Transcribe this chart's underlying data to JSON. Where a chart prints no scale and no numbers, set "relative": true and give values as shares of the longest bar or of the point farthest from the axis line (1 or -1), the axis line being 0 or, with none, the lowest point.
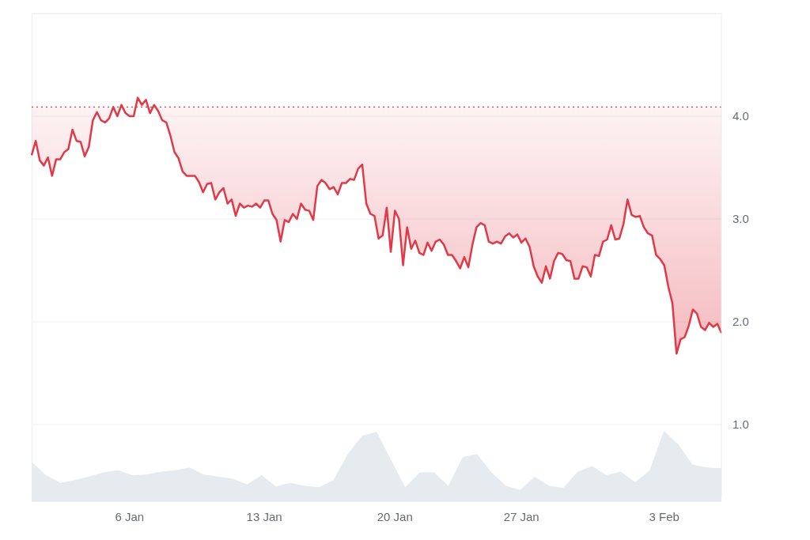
{
  "chart_data": [
    {
      "type": "line",
      "color": "#e03a48",
      "grid": "y",
      "ylim": [
        0.3,
        5.0
      ],
      "yticks": [
        {
          "value": 1,
          "label": "1.0"
        },
        {
          "value": 2,
          "label": "2.0"
        },
        {
          "value": 3,
          "label": "3.0"
        },
        {
          "value": 4,
          "label": "4.0"
        }
      ],
      "ref_lines": [
        {
          "axis": "y",
          "value": 4.09,
          "color": "#e03a48",
          "line_style": "dotted"
        }
      ],
      "categories": [
        null,
        null,
        null,
        null,
        null,
        null,
        null,
        null,
        null,
        null,
        null,
        null,
        null,
        null,
        null,
        null,
        null,
        null,
        null,
        null,
        null,
        null,
        null,
        null,
        "6 Jan",
        null,
        null,
        null,
        null,
        null,
        null,
        null,
        null,
        null,
        null,
        null,
        null,
        null,
        null,
        null,
        null,
        null,
        null,
        null,
        null,
        null,
        null,
        null,
        null,
        null,
        null,
        null,
        null,
        null,
        null,
        null,
        null,
        "13 Jan",
        null,
        null,
        null,
        null,
        null,
        null,
        null,
        null,
        null,
        null,
        null,
        null,
        null,
        null,
        null,
        null,
        null,
        null,
        null,
        null,
        null,
        null,
        null,
        null,
        null,
        null,
        null,
        null,
        null,
        null,
        null,
        "20 Jan",
        null,
        null,
        null,
        null,
        null,
        null,
        null,
        null,
        null,
        null,
        null,
        null,
        null,
        null,
        null,
        null,
        null,
        null,
        null,
        null,
        null,
        null,
        null,
        null,
        null,
        null,
        null,
        null,
        null,
        null,
        "27 Jan",
        null,
        null,
        null,
        null,
        null,
        null,
        null,
        null,
        null,
        null,
        null,
        null,
        null,
        null,
        null,
        null,
        null,
        null,
        null,
        null,
        null,
        null,
        null,
        null,
        null,
        null,
        null,
        null,
        null,
        null,
        null,
        null,
        null,
        null,
        "3 Feb",
        null,
        null,
        null,
        null,
        null,
        null,
        null,
        null,
        null,
        null,
        null,
        null,
        null,
        null
      ],
      "values": [
        3.62,
        3.76,
        3.57,
        3.52,
        3.6,
        3.42,
        3.58,
        3.58,
        3.65,
        3.68,
        3.87,
        3.76,
        3.75,
        3.61,
        3.7,
        3.96,
        4.04,
        3.96,
        3.94,
        3.98,
        4.09,
        4.0,
        4.11,
        4.03,
        4.0,
        4.0,
        4.18,
        4.11,
        4.16,
        4.03,
        4.11,
        4.05,
        3.96,
        3.94,
        3.81,
        3.65,
        3.59,
        3.46,
        3.42,
        3.42,
        3.42,
        3.36,
        3.26,
        3.34,
        3.35,
        3.19,
        3.26,
        3.3,
        3.15,
        3.19,
        3.03,
        3.15,
        3.11,
        3.13,
        3.12,
        3.15,
        3.11,
        3.18,
        3.18,
        3.05,
        2.99,
        2.78,
        2.99,
        2.97,
        3.05,
        3.0,
        3.15,
        3.09,
        3.08,
        2.99,
        3.32,
        3.38,
        3.35,
        3.29,
        3.31,
        3.24,
        3.35,
        3.35,
        3.39,
        3.38,
        3.49,
        3.53,
        3.15,
        3.05,
        3.03,
        2.81,
        2.84,
        3.11,
        2.68,
        3.08,
        3.0,
        2.55,
        2.92,
        2.71,
        2.79,
        2.67,
        2.65,
        2.77,
        2.69,
        2.78,
        2.8,
        2.75,
        2.65,
        2.65,
        2.59,
        2.52,
        2.63,
        2.53,
        2.75,
        2.92,
        2.96,
        2.94,
        2.78,
        2.76,
        2.78,
        2.76,
        2.83,
        2.86,
        2.82,
        2.85,
        2.77,
        2.81,
        2.73,
        2.54,
        2.44,
        2.38,
        2.54,
        2.42,
        2.59,
        2.67,
        2.66,
        2.6,
        2.59,
        2.42,
        2.42,
        2.54,
        2.53,
        2.44,
        2.65,
        2.64,
        2.78,
        2.8,
        2.94,
        2.8,
        2.81,
        2.95,
        3.19,
        3.04,
        3.02,
        3.03,
        2.92,
        2.86,
        2.84,
        2.65,
        2.61,
        2.55,
        2.34,
        2.18,
        1.69,
        1.83,
        1.85,
        1.96,
        2.12,
        2.08,
        1.95,
        1.92,
        1.99,
        1.95,
        1.98,
        1.89
      ]
    },
    {
      "type": "area",
      "color": "#e6ebef",
      "relative": true,
      "tick_labels": false,
      "categories": [
        null,
        null,
        null,
        null,
        null,
        null,
        null,
        null,
        null,
        null,
        null,
        null,
        null,
        null,
        null,
        null,
        null,
        null,
        null,
        null,
        null,
        null,
        null,
        null,
        null,
        null,
        null,
        null,
        null,
        null,
        null,
        null,
        null,
        null,
        null,
        null,
        null,
        null,
        null,
        null,
        null,
        null,
        null,
        null,
        null,
        null,
        null,
        null,
        null
      ],
      "values": [
        0.56,
        0.37,
        0.26,
        0.3,
        0.35,
        0.41,
        0.44,
        0.37,
        0.38,
        0.42,
        0.44,
        0.48,
        0.38,
        0.35,
        0.32,
        0.24,
        0.37,
        0.21,
        0.26,
        0.22,
        0.2,
        0.3,
        0.67,
        0.93,
        0.99,
        0.59,
        0.2,
        0.41,
        0.41,
        0.22,
        0.63,
        0.67,
        0.41,
        0.22,
        0.16,
        0.35,
        0.22,
        0.19,
        0.42,
        0.5,
        0.37,
        0.42,
        0.27,
        0.44,
        1.0,
        0.81,
        0.52,
        0.48,
        0.47
      ]
    }
  ]
}
